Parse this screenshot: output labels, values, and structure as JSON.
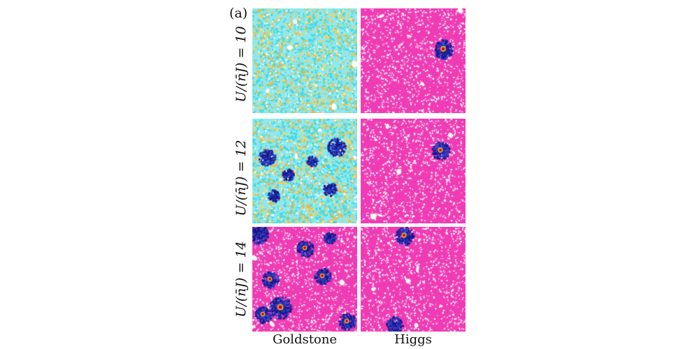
{
  "figure": {
    "panel_label": "(a)",
    "column_labels": [
      "Goldstone",
      "Higgs"
    ],
    "row_labels": [
      "U/(n̄J) = 10",
      "U/(n̄J) = 12",
      "U/(n̄J) = 14"
    ]
  },
  "colors": {
    "background_fill": "#f03cb4",
    "hole": "#ffffff",
    "cyan": "#3fd9e6",
    "light_cyan": "#8fe8ee",
    "orange": "#f4b63c",
    "yellow": "#f2d865",
    "blue": "#2c3fc7",
    "navy": "#15168a",
    "red": "#d32a14",
    "dark_red": "#8c0a0a"
  },
  "panels": [
    {
      "row": 0,
      "col": 0,
      "mode": "Goldstone",
      "pattern": "turbulent cyan/orange texture"
    },
    {
      "row": 0,
      "col": 1,
      "mode": "Higgs",
      "pattern": "magenta with one blue cluster upper-right"
    },
    {
      "row": 1,
      "col": 0,
      "mode": "Goldstone",
      "pattern": "cyan/orange texture with several dark blue clusters"
    },
    {
      "row": 1,
      "col": 1,
      "mode": "Higgs",
      "pattern": "magenta with one blue cluster upper-right"
    },
    {
      "row": 2,
      "col": 0,
      "mode": "Goldstone",
      "pattern": "magenta with many blue clusters containing red cores"
    },
    {
      "row": 2,
      "col": 1,
      "mode": "Higgs",
      "pattern": "magenta with blue clusters at top and bottom"
    }
  ]
}
